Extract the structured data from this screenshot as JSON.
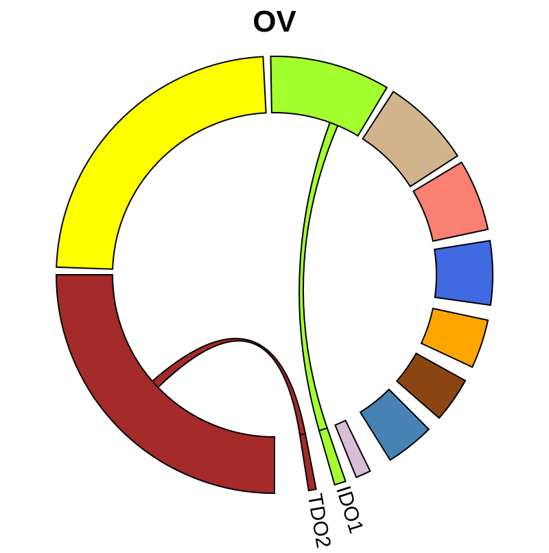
{
  "chart_data": {
    "type": "chord",
    "title": "OV",
    "sectors": [
      {
        "label": "",
        "color": "#A52A2A",
        "start_deg": 90,
        "end_deg": 180
      },
      {
        "label": "",
        "color": "#FFFF00",
        "start_deg": 182,
        "end_deg": 267
      },
      {
        "label": "",
        "color": "#A4FF2E",
        "start_deg": 269,
        "end_deg": 301
      },
      {
        "label": "",
        "color": "#D2B48C",
        "start_deg": 303,
        "end_deg": 327
      },
      {
        "label": "",
        "color": "#FA8072",
        "start_deg": 329,
        "end_deg": 348
      },
      {
        "label": "",
        "color": "#4169E1",
        "start_deg": 351,
        "end_deg": 368
      },
      {
        "label": "",
        "color": "#FFA500",
        "start_deg": 372,
        "end_deg": 385
      },
      {
        "label": "",
        "color": "#8B4513",
        "start_deg": 389,
        "end_deg": 401
      },
      {
        "label": "",
        "color": "#4682B4",
        "start_deg": 405,
        "end_deg": 418
      },
      {
        "label": "",
        "color": "#D8BFD8",
        "start_deg": 424,
        "end_deg": 428
      },
      {
        "label": "IDO1",
        "color": "#A4FF2E",
        "start_deg": 431,
        "end_deg": 434
      },
      {
        "label": "TDO2",
        "color": "#A52A2A",
        "start_deg": 439,
        "end_deg": 441
      }
    ],
    "links": [
      {
        "color": "#A4FF2E",
        "from": [
          431,
          434
        ],
        "to": [
          290,
          293
        ]
      },
      {
        "color": "#A52A2A",
        "from": [
          439,
          441
        ],
        "to": [
          136,
          139
        ]
      }
    ]
  }
}
